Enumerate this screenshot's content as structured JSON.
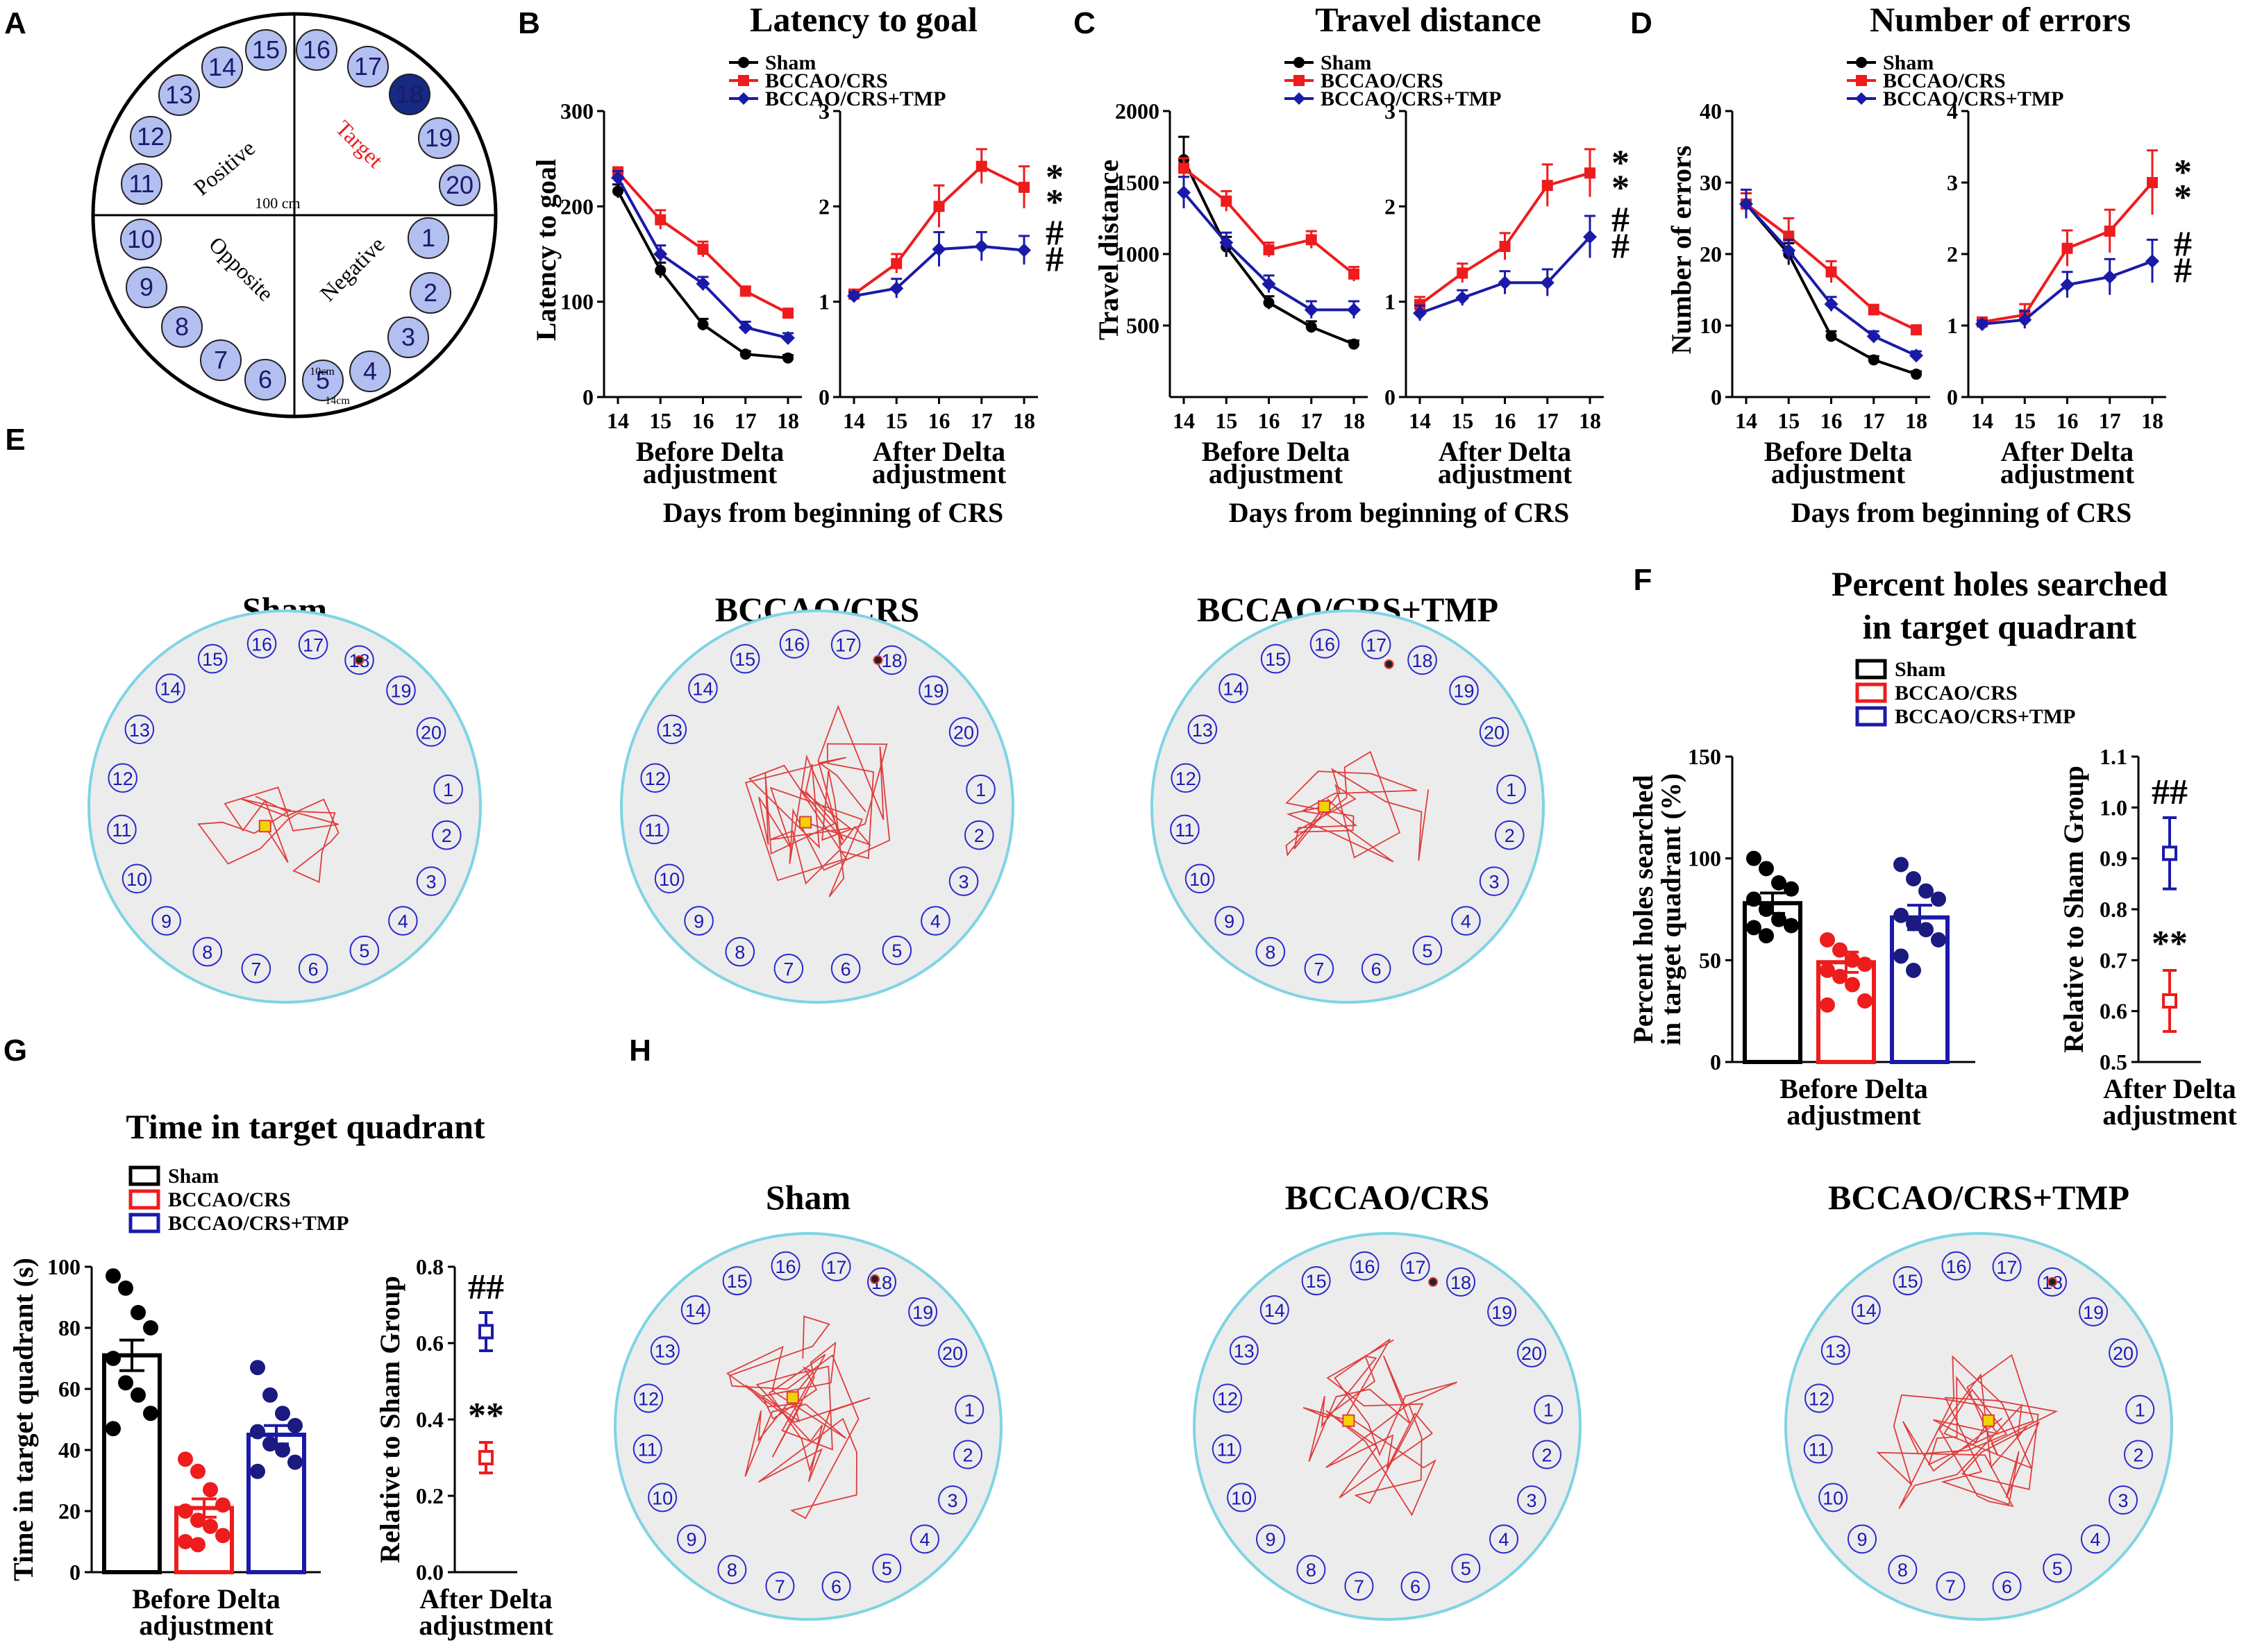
{
  "colors": {
    "sham": "#000000",
    "bccao": "#ee1c1c",
    "tmp": "#1a1aa8",
    "hole_fill": "#b3bff0",
    "hole_target": "#152a80",
    "maze_fill": "#ececec",
    "maze_border": "#7fd4e4",
    "track": "#e03c3c"
  },
  "panel_labels": [
    "A",
    "B",
    "C",
    "D",
    "E",
    "F",
    "G",
    "H"
  ],
  "maze_schematic": {
    "quadrants": [
      "Positive",
      "Target",
      "Opposite",
      "Negative"
    ],
    "holes": [
      "1",
      "2",
      "3",
      "4",
      "5",
      "6",
      "7",
      "8",
      "9",
      "10",
      "11",
      "12",
      "13",
      "14",
      "15",
      "16",
      "17",
      "18",
      "19",
      "20"
    ],
    "target_hole": "18",
    "diameter_label": "100 cm",
    "hole_size_label": "10cm",
    "hole_spacing_label": "14cm"
  },
  "legend": [
    "Sham",
    "BCCAO/CRS",
    "BCCAO/CRS+TMP"
  ],
  "x_days": [
    "14",
    "15",
    "16",
    "17",
    "18"
  ],
  "before_label": [
    "Before Delta",
    "adjustment"
  ],
  "after_label": [
    "After Delta",
    "adjustment"
  ],
  "x_axis_title": "Days from beginning of CRS",
  "relative_ylabel": "Relative to Sham Group",
  "sig": {
    "double_star": "**",
    "double_hash": "##"
  },
  "chart_data": [
    {
      "panel": "B",
      "type": "line",
      "title": "Latency to goal",
      "ylabel": "Latency to goal",
      "x": [
        14,
        15,
        16,
        17,
        18
      ],
      "before": {
        "ylim": [
          0,
          300
        ],
        "yticks": [
          "0",
          "100",
          "200",
          "300"
        ],
        "series": [
          {
            "name": "Sham",
            "values": [
              216,
              133,
              76,
              45,
              41
            ],
            "err": [
              7,
              8,
              6,
              3,
              3
            ]
          },
          {
            "name": "BCCAO/CRS",
            "values": [
              236,
              186,
              155,
              111,
              88
            ],
            "err": [
              5,
              10,
              8,
              5,
              4
            ]
          },
          {
            "name": "BCCAO/CRS+TMP",
            "values": [
              230,
              150,
              119,
              73,
              62
            ],
            "err": [
              7,
              9,
              7,
              6,
              5
            ]
          }
        ]
      },
      "after": {
        "ylim": [
          0,
          3
        ],
        "yticks": [
          "0",
          "1",
          "2",
          "3"
        ],
        "series": [
          {
            "name": "BCCAO/CRS",
            "values": [
              1.08,
              1.4,
              2.0,
              2.42,
              2.2
            ],
            "err": [
              0.04,
              0.1,
              0.22,
              0.18,
              0.22
            ]
          },
          {
            "name": "BCCAO/CRS+TMP",
            "values": [
              1.06,
              1.14,
              1.55,
              1.58,
              1.54
            ],
            "err": [
              0.04,
              0.1,
              0.18,
              0.15,
              0.15
            ]
          }
        ],
        "sig": [
          "**",
          "##"
        ]
      }
    },
    {
      "panel": "C",
      "type": "line",
      "title": "Travel distance",
      "ylabel": "Travel distance",
      "x": [
        14,
        15,
        16,
        17,
        18
      ],
      "before": {
        "ylim": [
          0,
          2000
        ],
        "yticks": [
          "500",
          "1000",
          "1500",
          "2000"
        ],
        "series": [
          {
            "name": "Sham",
            "values": [
              1660,
              1050,
              660,
              490,
              370
            ],
            "err": [
              160,
              70,
              45,
              40,
              25
            ]
          },
          {
            "name": "BCCAO/CRS",
            "values": [
              1600,
              1370,
              1030,
              1100,
              860
            ],
            "err": [
              70,
              70,
              50,
              60,
              50
            ]
          },
          {
            "name": "BCCAO/CRS+TMP",
            "values": [
              1430,
              1080,
              790,
              610,
              610
            ],
            "err": [
              110,
              70,
              60,
              60,
              60
            ]
          }
        ]
      },
      "after": {
        "ylim": [
          0,
          3
        ],
        "yticks": [
          "0",
          "1",
          "2",
          "3"
        ],
        "series": [
          {
            "name": "BCCAO/CRS",
            "values": [
              0.97,
              1.3,
              1.58,
              2.22,
              2.35
            ],
            "err": [
              0.08,
              0.1,
              0.14,
              0.22,
              0.25
            ]
          },
          {
            "name": "BCCAO/CRS+TMP",
            "values": [
              0.88,
              1.04,
              1.2,
              1.2,
              1.68
            ],
            "err": [
              0.08,
              0.08,
              0.12,
              0.14,
              0.22
            ]
          }
        ],
        "sig": [
          "**",
          "##"
        ]
      }
    },
    {
      "panel": "D",
      "type": "line",
      "title": "Number of errors",
      "ylabel": "Number of errors",
      "x": [
        14,
        15,
        16,
        17,
        18
      ],
      "before": {
        "ylim": [
          0,
          40
        ],
        "yticks": [
          "0",
          "10",
          "20",
          "30",
          "40"
        ],
        "series": [
          {
            "name": "Sham",
            "values": [
              27,
              20,
              8.5,
              5.2,
              3.2
            ],
            "err": [
              1.5,
              1.5,
              0.7,
              0.5,
              0.4
            ]
          },
          {
            "name": "BCCAO/CRS",
            "values": [
              27,
              22.5,
              17.5,
              12.2,
              9.4
            ],
            "err": [
              1.5,
              2.5,
              1.5,
              0.7,
              0.6
            ]
          },
          {
            "name": "BCCAO/CRS+TMP",
            "values": [
              27,
              20.5,
              13,
              8.5,
              5.8
            ],
            "err": [
              2,
              1.5,
              1,
              0.7,
              0.6
            ]
          }
        ]
      },
      "after": {
        "ylim": [
          0,
          4
        ],
        "yticks": [
          "0",
          "1",
          "2",
          "3",
          "4"
        ],
        "series": [
          {
            "name": "BCCAO/CRS",
            "values": [
              1.05,
              1.15,
              2.08,
              2.32,
              3.0
            ],
            "err": [
              0.05,
              0.15,
              0.25,
              0.3,
              0.45
            ]
          },
          {
            "name": "BCCAO/CRS+TMP",
            "values": [
              1.02,
              1.08,
              1.57,
              1.68,
              1.9
            ],
            "err": [
              0.05,
              0.12,
              0.18,
              0.25,
              0.3
            ]
          }
        ],
        "sig": [
          "**",
          "##"
        ]
      }
    },
    {
      "panel": "F",
      "type": "bar",
      "title": "Percent holes searched in target quadrant",
      "title_lines": [
        "Percent holes searched",
        "in target quadrant"
      ],
      "ylabel_lines": [
        "Percent holes searched",
        "in target quadrant (%)"
      ],
      "ylim": [
        0,
        150
      ],
      "yticks": [
        "0",
        "50",
        "100",
        "150"
      ],
      "categories": [
        "Sham",
        "BCCAO/CRS",
        "BCCAO/CRS+TMP"
      ],
      "values": [
        78,
        49,
        71
      ],
      "err": [
        5,
        5,
        6
      ],
      "points": [
        [
          100,
          95,
          88,
          85,
          80,
          75,
          70,
          67,
          66,
          62
        ],
        [
          60,
          55,
          50,
          48,
          45,
          42,
          38,
          30,
          28
        ],
        [
          97,
          90,
          84,
          80,
          72,
          68,
          65,
          60,
          52,
          45
        ]
      ],
      "relative": {
        "ylim": [
          0.5,
          1.1
        ],
        "yticks": [
          "0.5",
          "0.6",
          "0.7",
          "0.8",
          "0.9",
          "1.0",
          "1.1"
        ],
        "values": [
          {
            "name": "BCCAO/CRS",
            "mean": 0.62,
            "err": 0.06
          },
          {
            "name": "BCCAO/CRS+TMP",
            "mean": 0.91,
            "err": 0.07
          }
        ],
        "sig": [
          "**",
          "##"
        ]
      }
    },
    {
      "panel": "G",
      "type": "bar",
      "title": "Time in target quadrant",
      "ylabel": "Time in target quadrant (s)",
      "ylim": [
        0,
        100
      ],
      "yticks": [
        "0",
        "20",
        "40",
        "60",
        "80",
        "100"
      ],
      "categories": [
        "Sham",
        "BCCAO/CRS",
        "BCCAO/CRS+TMP"
      ],
      "values": [
        71,
        21,
        45
      ],
      "err": [
        5,
        3,
        3
      ],
      "points": [
        [
          97,
          93,
          85,
          80,
          70,
          62,
          58,
          52,
          47
        ],
        [
          37,
          33,
          27,
          22,
          20,
          17,
          15,
          12,
          10,
          9
        ],
        [
          67,
          58,
          52,
          48,
          46,
          42,
          40,
          36,
          33
        ]
      ],
      "relative": {
        "ylim": [
          0,
          0.8
        ],
        "yticks": [
          "0.0",
          "0.2",
          "0.4",
          "0.6",
          "0.8"
        ],
        "values": [
          {
            "name": "BCCAO/CRS",
            "mean": 0.3,
            "err": 0.04
          },
          {
            "name": "BCCAO/CRS+TMP",
            "mean": 0.63,
            "err": 0.05
          }
        ],
        "sig": [
          "**",
          "##"
        ]
      }
    }
  ],
  "track_panels": {
    "E": [
      "Sham",
      "BCCAO/CRS",
      "BCCAO/CRS+TMP"
    ],
    "H": [
      "Sham",
      "BCCAO/CRS",
      "BCCAO/CRS+TMP"
    ]
  }
}
